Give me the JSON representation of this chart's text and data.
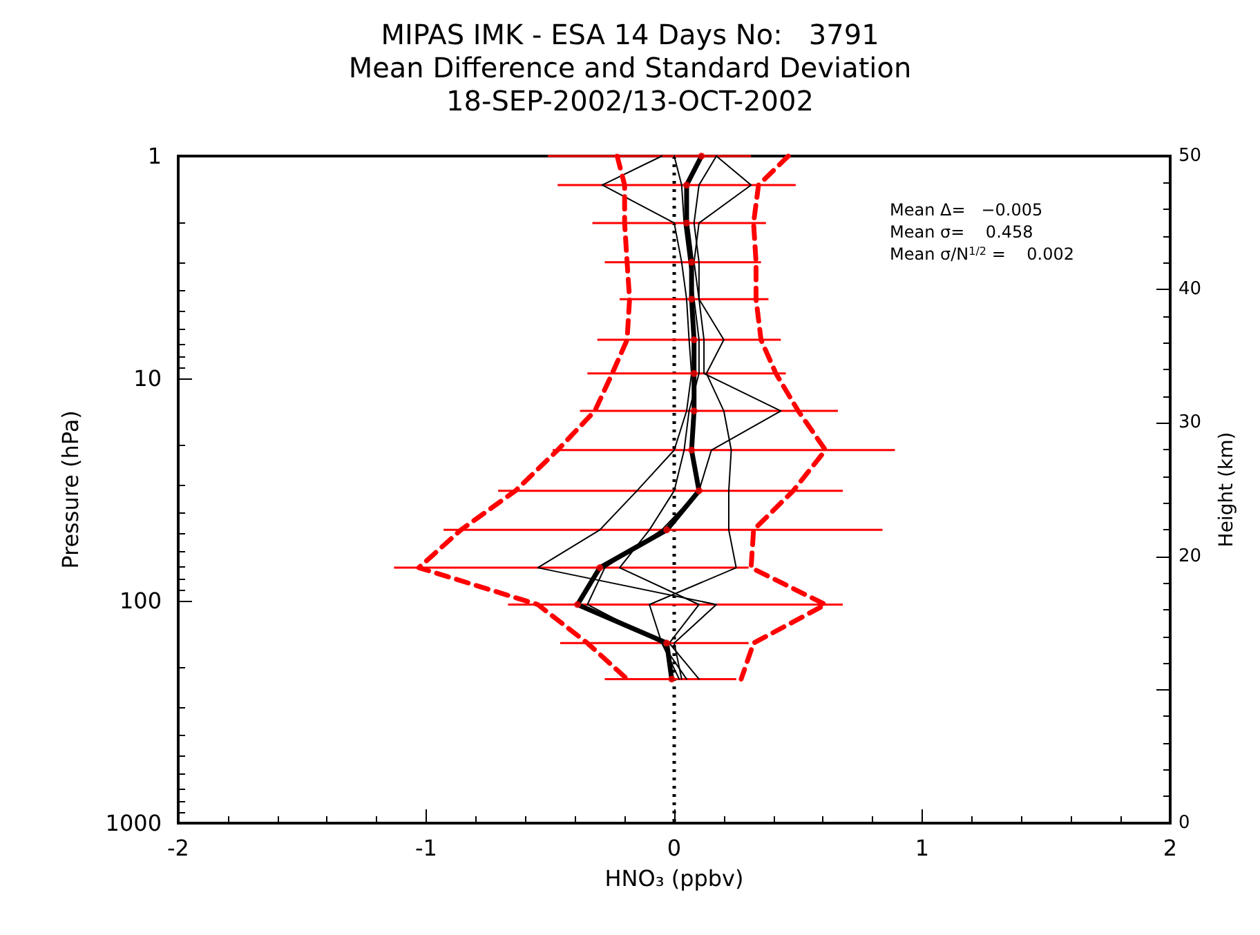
{
  "chart_data": {
    "type": "line",
    "title": "MIPAS IMK - ESA 14 Days No:   3791",
    "subtitle": "Mean Difference and Standard Deviation\n18-SEP-2002/13-OCT-2002",
    "xlabel": "HNO₃ (ppbv)",
    "ylabel": "Pressure (hPa)",
    "y2label": "Height (km)",
    "annotations": [
      "Mean Δ=   −0.005",
      "Mean σ=    0.458",
      "Mean σ/N$^{1/2}$ =    0.002"
    ],
    "log": "y",
    "xlim": [
      -2,
      2
    ],
    "xticks": [
      -2,
      -1,
      0,
      1,
      2
    ],
    "ylim": [
      1000,
      1
    ],
    "yticks": [
      1,
      10,
      100,
      1000
    ],
    "y2lim": [
      0,
      50
    ],
    "y2ticks": [
      0,
      {
        "value": 10,
        "label": null
      },
      20,
      30,
      40,
      50
    ],
    "grid": false,
    "marker": "none",
    "ref_lines": [
      {
        "axis": "x",
        "value": 0,
        "color": "#000000",
        "line_style": "dotted"
      }
    ],
    "series": [
      {
        "color": "#000000",
        "x": [
          0.11,
          0.05,
          0.05,
          0.07,
          0.07,
          0.08,
          0.08,
          0.08,
          0.07,
          0.1,
          -0.03,
          -0.3,
          -0.39,
          -0.03,
          -0.01
        ],
        "values": [
          1.0,
          1.35,
          2,
          3,
          4.4,
          6.7,
          9.5,
          14,
          21,
          32,
          48,
          71,
          104,
          155,
          225
        ]
      },
      {
        "color": "#000000",
        "x": [
          0.17,
          0.1,
          0.08,
          0.1,
          0.1,
          0.12,
          0.12,
          0.43,
          0.15,
          0.1,
          -0.05,
          -0.28,
          -0.35,
          -0.05,
          0.02
        ],
        "values": [
          1.0,
          1.35,
          2,
          3,
          4.4,
          6.7,
          9.5,
          14,
          21,
          32,
          48,
          71,
          104,
          155,
          225
        ]
      },
      {
        "color": "#000000",
        "x": [
          0.17,
          0.31,
          0.1,
          0.08,
          0.1,
          0.2,
          0.13,
          0.2,
          0.23,
          0.22,
          0.22,
          0.25,
          -0.1,
          -0.05,
          0.05
        ],
        "values": [
          1.0,
          1.35,
          2,
          3,
          4.4,
          6.7,
          9.5,
          14,
          21,
          32,
          48,
          71,
          104,
          155,
          225
        ]
      },
      {
        "color": "#000000",
        "x": [
          -0.05,
          -0.29,
          0.0,
          0.03,
          0.05,
          0.06,
          0.07,
          0.05,
          0.0,
          -0.15,
          -0.3,
          -0.55,
          0.17,
          0.0,
          0.03
        ],
        "values": [
          1.0,
          1.35,
          2,
          3,
          4.4,
          6.7,
          9.5,
          14,
          21,
          32,
          48,
          71,
          104,
          155,
          225
        ]
      },
      {
        "color": "#000000",
        "x": [
          0.0,
          0.03,
          0.04,
          0.06,
          0.08,
          0.1,
          0.1,
          0.06,
          0.04,
          0.0,
          -0.1,
          -0.22,
          0.1,
          -0.02,
          0.1
        ],
        "values": [
          1.0,
          1.35,
          2,
          3,
          4.4,
          6.7,
          9.5,
          14,
          21,
          32,
          48,
          71,
          104,
          155,
          225
        ]
      },
      {
        "color": "#ff0000",
        "line_style": "dashed",
        "x": [
          -0.23,
          -0.2,
          -0.2,
          -0.19,
          -0.18,
          -0.19,
          -0.25,
          -0.32,
          -0.47,
          -0.64,
          -0.86,
          -1.03,
          -0.55,
          -0.35,
          -0.19
        ],
        "values": [
          1.0,
          1.35,
          2,
          3,
          4.4,
          6.7,
          9.5,
          14,
          21,
          32,
          48,
          71,
          104,
          155,
          225
        ]
      },
      {
        "color": "#ff0000",
        "line_style": "dashed",
        "x": [
          0.46,
          0.34,
          0.32,
          0.33,
          0.33,
          0.35,
          0.41,
          0.5,
          0.61,
          0.48,
          0.32,
          0.31,
          0.61,
          0.32,
          0.27
        ],
        "values": [
          1.0,
          1.35,
          2,
          3,
          4.4,
          6.7,
          9.5,
          14,
          21,
          32,
          48,
          71,
          104,
          155,
          225
        ]
      },
      {
        "type": "scatter",
        "marker": "circle",
        "color": "#ff0000",
        "x": [
          0.11,
          0.05,
          0.05,
          0.07,
          0.07,
          0.08,
          0.08,
          0.08,
          0.07,
          0.1,
          -0.03,
          -0.3,
          -0.39,
          -0.03,
          -0.01
        ],
        "values": [
          1.0,
          1.35,
          2,
          3,
          4.4,
          6.7,
          9.5,
          14,
          21,
          32,
          48,
          71,
          104,
          155,
          225
        ],
        "xerrors": [
          [
            -0.51,
            0.31
          ],
          [
            -0.47,
            0.49
          ],
          [
            -0.33,
            0.37
          ],
          [
            -0.28,
            0.35
          ],
          [
            -0.22,
            0.38
          ],
          [
            -0.31,
            0.43
          ],
          [
            -0.35,
            0.45
          ],
          [
            -0.38,
            0.66
          ],
          [
            -0.49,
            0.89
          ],
          [
            -0.71,
            0.68
          ],
          [
            -0.93,
            0.84
          ],
          [
            -1.13,
            0.3
          ],
          [
            -0.67,
            0.68
          ],
          [
            -0.46,
            0.3
          ],
          [
            -0.28,
            0.25
          ]
        ]
      }
    ]
  }
}
